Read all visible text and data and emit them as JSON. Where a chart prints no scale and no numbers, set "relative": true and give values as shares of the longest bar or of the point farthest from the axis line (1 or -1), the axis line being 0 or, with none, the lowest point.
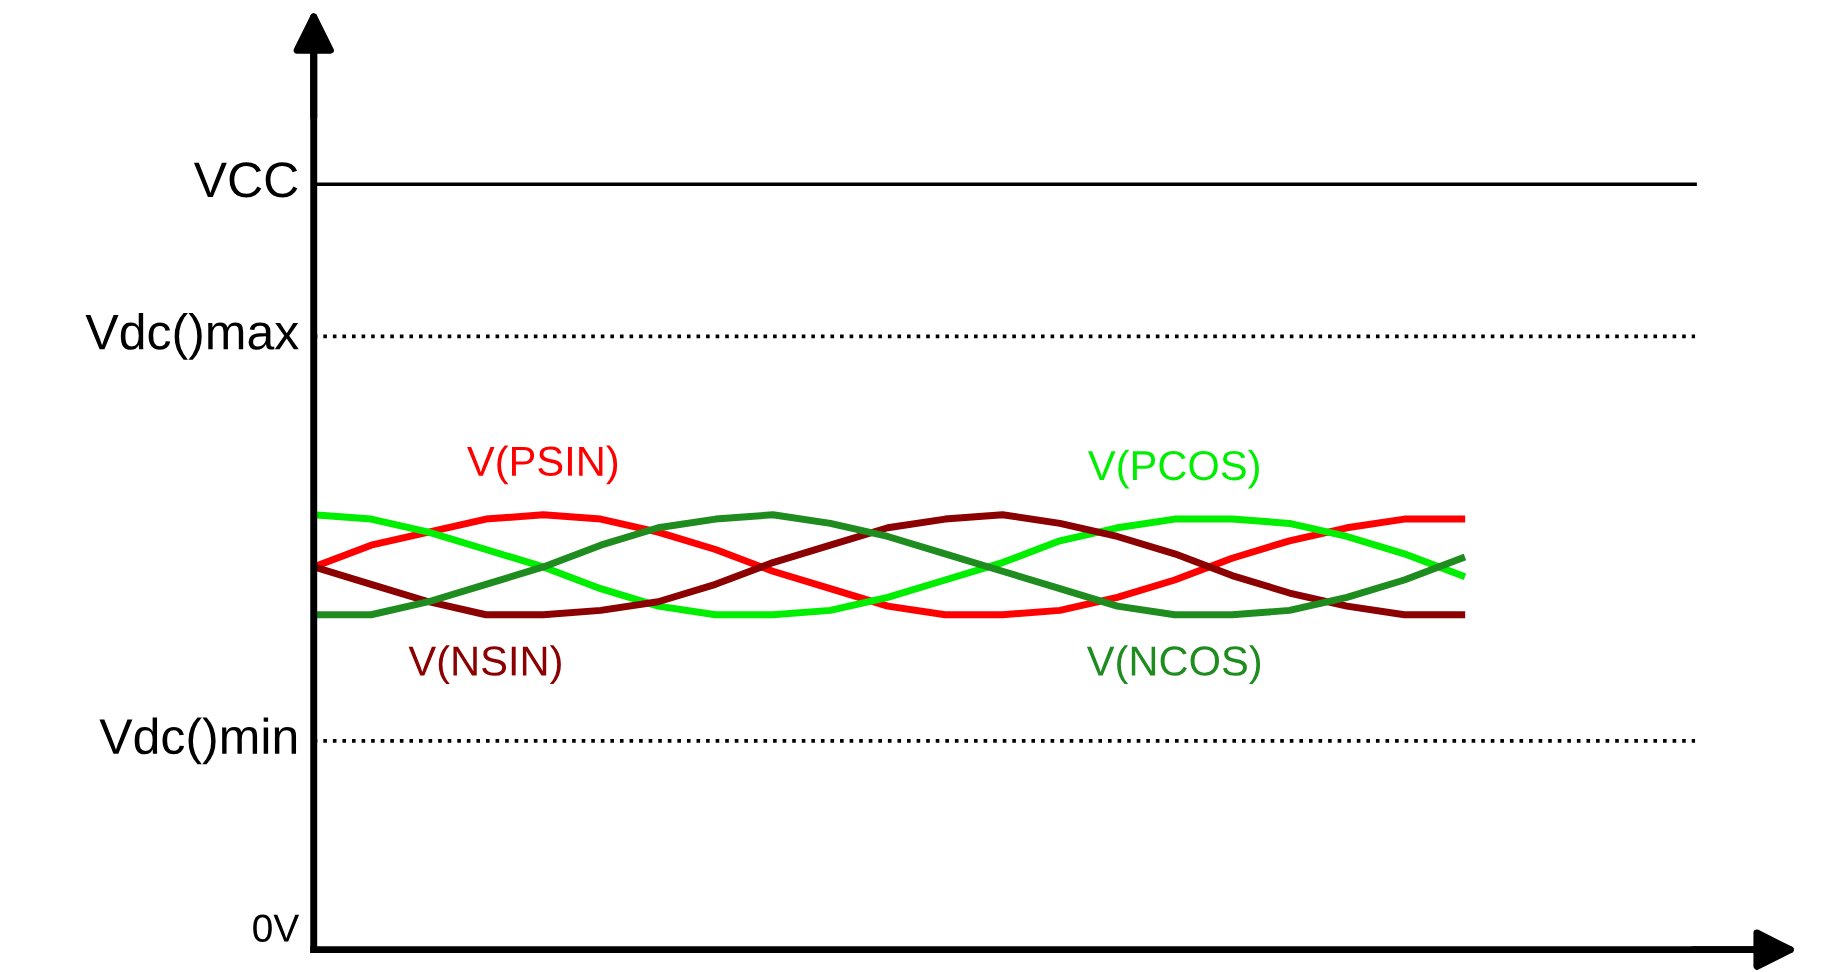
{
  "chart_data": {
    "type": "line",
    "relative": true,
    "legend": false,
    "marker": "none",
    "line_style": "solid",
    "categories": [
      null,
      null,
      null,
      null,
      null,
      null,
      null,
      null,
      null,
      null,
      null,
      null,
      null,
      null,
      null,
      null,
      null,
      null,
      null,
      null,
      null
    ],
    "series": [
      {
        "name": "V(PSIN)",
        "color": "#ff0000",
        "values": [
          0.88,
          0.93,
          0.96,
          0.99,
          1.0,
          0.99,
          0.96,
          0.92,
          0.87,
          0.83,
          0.79,
          0.77,
          0.77,
          0.78,
          0.81,
          0.85,
          0.9,
          0.94,
          0.97,
          0.99,
          0.99
        ]
      },
      {
        "name": "V(PCOS)",
        "color": "#00ee00",
        "values": [
          1.0,
          0.99,
          0.96,
          0.92,
          0.88,
          0.83,
          0.79,
          0.77,
          0.77,
          0.78,
          0.81,
          0.85,
          0.89,
          0.94,
          0.97,
          0.99,
          0.99,
          0.98,
          0.95,
          0.91,
          0.86
        ]
      },
      {
        "name": "V(NSIN)",
        "color": "#8b0000",
        "values": [
          0.88,
          0.84,
          0.8,
          0.77,
          0.77,
          0.78,
          0.8,
          0.84,
          0.89,
          0.93,
          0.97,
          0.99,
          1.0,
          0.98,
          0.95,
          0.91,
          0.86,
          0.82,
          0.79,
          0.77,
          0.77
        ]
      },
      {
        "name": "V(NCOS)",
        "color": "#1e8c1e",
        "values": [
          0.77,
          0.77,
          0.8,
          0.84,
          0.88,
          0.93,
          0.97,
          0.99,
          1.0,
          0.98,
          0.95,
          0.91,
          0.87,
          0.83,
          0.79,
          0.77,
          0.77,
          0.78,
          0.81,
          0.85,
          0.9
        ]
      }
    ],
    "ref_lines": [
      {
        "axis": "y",
        "value": 1.76,
        "label": "VCC",
        "color": "#000000",
        "line_style": "solid"
      },
      {
        "axis": "y",
        "value": 1.41,
        "label": "Vdc()max",
        "color": "#000000",
        "line_style": "dotted"
      },
      {
        "axis": "y",
        "value": 0.48,
        "label": "Vdc()min",
        "color": "#000000",
        "line_style": "dotted"
      }
    ],
    "annotations": [
      "0V"
    ]
  }
}
